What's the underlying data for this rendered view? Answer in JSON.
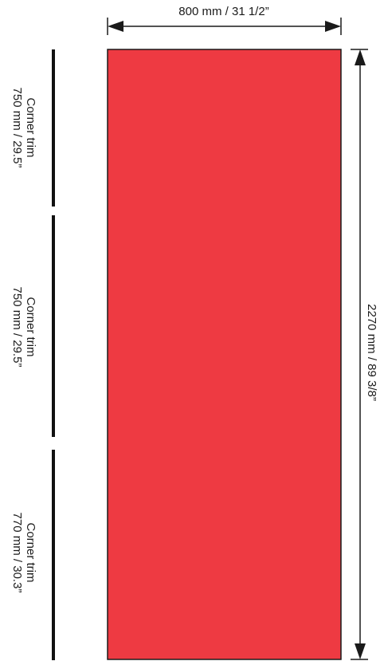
{
  "panel": {
    "color": "#EE3A42",
    "width_label": "800 mm / 31 1/2”",
    "height_label": "2270 mm / 89 3/8”"
  },
  "corner_trims": [
    {
      "title": "Corner trim",
      "size": "750 mm / 29.5”"
    },
    {
      "title": "Corner trim",
      "size": "750 mm / 29.5”"
    },
    {
      "title": "Corner trim",
      "size": "770 mm / 30.3”"
    }
  ]
}
